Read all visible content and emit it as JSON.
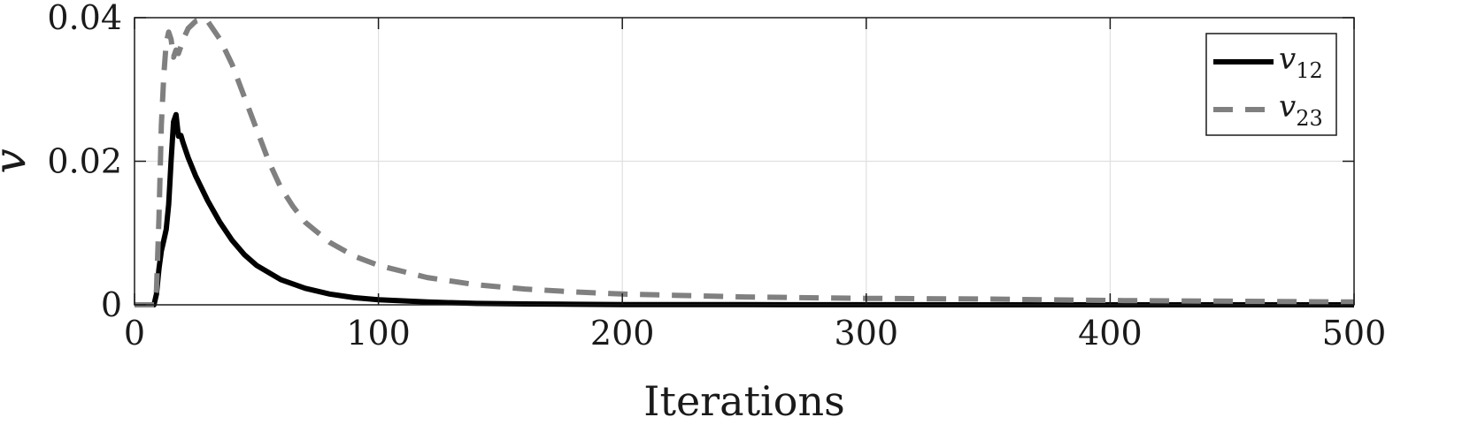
{
  "chart_data": {
    "type": "line",
    "xlabel": "Iterations",
    "ylabel": "v",
    "xlim": [
      0,
      500
    ],
    "ylim": [
      0,
      0.04
    ],
    "xticks": [
      0,
      100,
      200,
      300,
      400,
      500
    ],
    "xtick_labels": [
      "0",
      "100",
      "200",
      "300",
      "400",
      "500"
    ],
    "yticks": [
      0,
      0.02,
      0.04
    ],
    "ytick_labels": [
      "0",
      "0.02",
      "0.04"
    ],
    "grid": true,
    "legend_position": "top-right",
    "series": [
      {
        "name": "v12",
        "name_base": "v",
        "name_sub": "12",
        "color": "#000000",
        "style": "solid",
        "x": [
          0,
          8,
          9,
          10,
          11,
          12,
          13,
          14,
          15,
          16,
          17,
          18,
          19,
          20,
          22,
          25,
          30,
          35,
          40,
          45,
          50,
          60,
          70,
          80,
          90,
          100,
          120,
          140,
          160,
          180,
          200,
          250,
          300,
          350,
          400,
          450,
          500
        ],
        "y": [
          0,
          0,
          0.0015,
          0.005,
          0.0075,
          0.009,
          0.0105,
          0.014,
          0.02,
          0.0255,
          0.0265,
          0.0235,
          0.0236,
          0.0225,
          0.0205,
          0.018,
          0.0145,
          0.0115,
          0.009,
          0.007,
          0.0055,
          0.0035,
          0.0023,
          0.0015,
          0.001,
          0.0007,
          0.0004,
          0.0002,
          0.00012,
          7e-05,
          4e-05,
          2e-05,
          1e-05,
          0,
          0,
          0,
          0
        ]
      },
      {
        "name": "v23",
        "name_base": "v",
        "name_sub": "23",
        "color": "#808080",
        "style": "dashed",
        "x": [
          0,
          8,
          9,
          10,
          11,
          12,
          13,
          14,
          15,
          16,
          17,
          18,
          19,
          20,
          22,
          25,
          28,
          30,
          32,
          35,
          40,
          45,
          50,
          55,
          60,
          65,
          70,
          80,
          90,
          100,
          120,
          140,
          160,
          180,
          200,
          250,
          300,
          350,
          400,
          450,
          500
        ],
        "y": [
          0,
          0,
          0.002,
          0.012,
          0.025,
          0.032,
          0.0365,
          0.038,
          0.037,
          0.0345,
          0.0355,
          0.035,
          0.036,
          0.037,
          0.0385,
          0.0395,
          0.0398,
          0.0395,
          0.0385,
          0.037,
          0.0335,
          0.029,
          0.0245,
          0.02,
          0.0163,
          0.0137,
          0.0115,
          0.0087,
          0.0068,
          0.0055,
          0.0038,
          0.0028,
          0.0022,
          0.0018,
          0.0015,
          0.0011,
          0.0009,
          0.0008,
          0.0006,
          0.0005,
          0.0004
        ]
      }
    ]
  }
}
